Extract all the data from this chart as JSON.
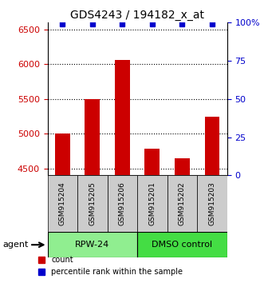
{
  "title": "GDS4243 / 194182_x_at",
  "samples": [
    "GSM915204",
    "GSM915205",
    "GSM915206",
    "GSM915201",
    "GSM915202",
    "GSM915203"
  ],
  "counts": [
    5000,
    5500,
    6060,
    4780,
    4650,
    5250
  ],
  "percentile_ranks": [
    99,
    99,
    99,
    99,
    99,
    99
  ],
  "group_labels": [
    "RPW-24",
    "DMSO control"
  ],
  "bar_color": "#CC0000",
  "percentile_color": "#0000CC",
  "ylim_left": [
    4400,
    6600
  ],
  "ylim_right": [
    0,
    100
  ],
  "yticks_left": [
    4500,
    5000,
    5500,
    6000,
    6500
  ],
  "yticks_right": [
    0,
    25,
    50,
    75,
    100
  ],
  "ytick_right_labels": [
    "0",
    "25",
    "50",
    "75",
    "100%"
  ],
  "left_tick_color": "#CC0000",
  "right_tick_color": "#0000CC",
  "legend_count_label": "count",
  "legend_percentile_label": "percentile rank within the sample",
  "sample_box_color": "#CCCCCC",
  "agent_group1_color": "#90EE90",
  "agent_group2_color": "#44DD44",
  "bar_bottom": 4400
}
